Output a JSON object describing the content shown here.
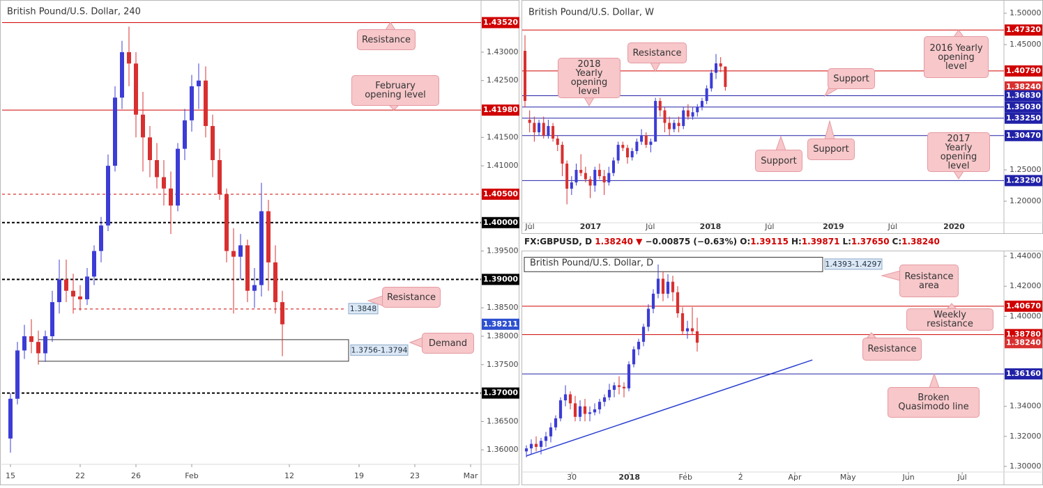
{
  "chart_data": [
    {
      "type": "candlestick",
      "title": "British Pound/U.S. Dollar, 240",
      "up_color": "#3c3cd6",
      "down_color": "#d83030",
      "open": [
        1.362,
        1.369,
        1.3775,
        1.38,
        1.379,
        1.377,
        1.38,
        1.386,
        1.39,
        1.388,
        1.387,
        1.3865,
        1.3905,
        1.395,
        1.3995,
        1.41,
        1.422,
        1.43,
        1.428,
        1.419,
        1.415,
        1.411,
        1.408,
        1.406,
        1.403,
        1.413,
        1.418,
        1.424,
        1.425,
        1.417,
        1.411,
        1.405,
        1.395,
        1.394,
        1.396,
        1.388,
        1.389,
        1.402,
        1.393,
        1.386
      ],
      "high": [
        1.37,
        1.379,
        1.382,
        1.383,
        1.381,
        1.381,
        1.388,
        1.3935,
        1.3935,
        1.391,
        1.389,
        1.392,
        1.396,
        1.401,
        1.412,
        1.424,
        1.432,
        1.4345,
        1.43,
        1.423,
        1.417,
        1.414,
        1.411,
        1.409,
        1.414,
        1.42,
        1.426,
        1.428,
        1.4275,
        1.419,
        1.413,
        1.406,
        1.399,
        1.398,
        1.397,
        1.392,
        1.407,
        1.404,
        1.396,
        1.388
      ],
      "low": [
        1.3595,
        1.368,
        1.376,
        1.377,
        1.375,
        1.3755,
        1.379,
        1.384,
        1.386,
        1.384,
        1.3845,
        1.3855,
        1.389,
        1.393,
        1.3985,
        1.409,
        1.42,
        1.424,
        1.415,
        1.409,
        1.408,
        1.406,
        1.403,
        1.398,
        1.402,
        1.411,
        1.416,
        1.42,
        1.415,
        1.408,
        1.404,
        1.393,
        1.384,
        1.39,
        1.386,
        1.385,
        1.387,
        1.388,
        1.384,
        1.3765
      ],
      "close": [
        1.369,
        1.3775,
        1.38,
        1.379,
        1.377,
        1.38,
        1.386,
        1.39,
        1.388,
        1.387,
        1.3865,
        1.3905,
        1.395,
        1.3995,
        1.41,
        1.422,
        1.43,
        1.428,
        1.419,
        1.415,
        1.411,
        1.408,
        1.406,
        1.403,
        1.413,
        1.418,
        1.424,
        1.425,
        1.417,
        1.411,
        1.405,
        1.395,
        1.394,
        1.396,
        1.388,
        1.389,
        1.402,
        1.393,
        1.386,
        1.3821
      ],
      "xlim": [
        -1.2,
        67.5
      ],
      "xticks": [
        {
          "value": 0,
          "label": "15"
        },
        {
          "value": 10,
          "label": "22"
        },
        {
          "value": 18,
          "label": "26"
        },
        {
          "value": 26,
          "label": "Feb"
        },
        {
          "value": 40,
          "label": "12"
        },
        {
          "value": 50,
          "label": "19"
        },
        {
          "value": 58,
          "label": "23"
        },
        {
          "value": 66,
          "label": "Mar"
        }
      ],
      "ylim": [
        1.3577,
        1.4382
      ],
      "yticks": [
        {
          "value": 1.43,
          "label": "1.43000"
        },
        {
          "value": 1.425,
          "label": "1.42500"
        },
        {
          "value": 1.415,
          "label": "1.41500"
        },
        {
          "value": 1.41,
          "label": "1.41000"
        },
        {
          "value": 1.395,
          "label": "1.39500"
        },
        {
          "value": 1.385,
          "label": "1.38500"
        },
        {
          "value": 1.38,
          "label": "1.38000"
        },
        {
          "value": 1.375,
          "label": "1.37500"
        },
        {
          "value": 1.365,
          "label": "1.36500"
        },
        {
          "value": 1.36,
          "label": "1.36000"
        }
      ],
      "levels": [
        {
          "value": 1.4352,
          "label": "1.43520",
          "color": "#d00000",
          "style": "solid"
        },
        {
          "value": 1.4198,
          "label": "1.41980",
          "color": "#d00000",
          "style": "solid"
        },
        {
          "value": 1.405,
          "label": "1.40500",
          "color": "#d00000",
          "style": "dashed"
        },
        {
          "value": 1.4,
          "label": "1.40000",
          "color": "#000000",
          "style": "dashed"
        },
        {
          "value": 1.39,
          "label": "1.39000",
          "color": "#000000",
          "style": "dashed"
        },
        {
          "value": 1.3848,
          "label": "1.3848",
          "color": "#d00000",
          "style": "dashed",
          "inline": true
        },
        {
          "value": 1.38211,
          "label": "1.38211",
          "color": "#2d50d0",
          "style": "none"
        },
        {
          "value": 1.37,
          "label": "1.37000",
          "color": "#000000",
          "style": "dashed"
        }
      ],
      "zones": [
        {
          "low": 1.3756,
          "high": 1.3794,
          "label": "1.3756-1.3794"
        }
      ],
      "annotations": [
        "Resistance",
        "February opening level",
        "Resistance",
        "Demand"
      ]
    },
    {
      "type": "candlestick",
      "title": "British Pound/U.S. Dollar, W",
      "up_color": "#3c3cd6",
      "down_color": "#d83030",
      "open": [
        1.44,
        1.33,
        1.325,
        1.31,
        1.325,
        1.305,
        1.32,
        1.3,
        1.29,
        1.26,
        1.22,
        1.23,
        1.25,
        1.245,
        1.235,
        1.225,
        1.25,
        1.24,
        1.23,
        1.245,
        1.265,
        1.29,
        1.285,
        1.27,
        1.28,
        1.295,
        1.305,
        1.29,
        1.295,
        1.36,
        1.345,
        1.325,
        1.315,
        1.325,
        1.32,
        1.345,
        1.335,
        1.342,
        1.35,
        1.36,
        1.38,
        1.405,
        1.42,
        1.415
      ],
      "high": [
        1.465,
        1.345,
        1.335,
        1.33,
        1.335,
        1.33,
        1.325,
        1.305,
        1.295,
        1.265,
        1.24,
        1.26,
        1.275,
        1.255,
        1.24,
        1.255,
        1.26,
        1.25,
        1.255,
        1.27,
        1.295,
        1.295,
        1.29,
        1.285,
        1.3,
        1.315,
        1.31,
        1.3,
        1.365,
        1.365,
        1.35,
        1.335,
        1.33,
        1.335,
        1.35,
        1.355,
        1.35,
        1.355,
        1.365,
        1.385,
        1.41,
        1.435,
        1.43,
        1.415
      ],
      "low": [
        1.35,
        1.31,
        1.295,
        1.305,
        1.3,
        1.3,
        1.295,
        1.28,
        1.24,
        1.195,
        1.21,
        1.225,
        1.24,
        1.23,
        1.205,
        1.215,
        1.235,
        1.21,
        1.225,
        1.24,
        1.26,
        1.28,
        1.26,
        1.265,
        1.275,
        1.29,
        1.285,
        1.278,
        1.295,
        1.335,
        1.31,
        1.305,
        1.31,
        1.31,
        1.315,
        1.33,
        1.33,
        1.335,
        1.345,
        1.355,
        1.375,
        1.395,
        1.406,
        1.3765
      ],
      "close": [
        1.36,
        1.325,
        1.31,
        1.325,
        1.305,
        1.32,
        1.3,
        1.29,
        1.26,
        1.22,
        1.23,
        1.25,
        1.245,
        1.235,
        1.225,
        1.25,
        1.24,
        1.23,
        1.245,
        1.265,
        1.29,
        1.285,
        1.27,
        1.28,
        1.295,
        1.305,
        1.29,
        1.295,
        1.36,
        1.345,
        1.325,
        1.315,
        1.325,
        1.32,
        1.345,
        1.335,
        1.342,
        1.35,
        1.36,
        1.38,
        1.405,
        1.42,
        1.415,
        1.3824
      ],
      "xlim": [
        -0.6,
        102.8
      ],
      "xticks": [
        {
          "value": 1.05,
          "label": "Jul"
        },
        {
          "value": 14.07,
          "label": "2017"
        },
        {
          "value": 26.9,
          "label": "Jul"
        },
        {
          "value": 39.8,
          "label": "2018"
        },
        {
          "value": 52.5,
          "label": "Jul"
        },
        {
          "value": 66.2,
          "label": "2019"
        },
        {
          "value": 78.9,
          "label": "Jul"
        },
        {
          "value": 92.1,
          "label": "2020"
        }
      ],
      "ylim": [
        1.1678,
        1.5156
      ],
      "yticks": [
        {
          "value": 1.5,
          "label": "1.50000"
        },
        {
          "value": 1.45,
          "label": "1.45000"
        },
        {
          "value": 1.25,
          "label": "1.25000"
        },
        {
          "value": 1.2,
          "label": "1.20000"
        }
      ],
      "levels": [
        {
          "value": 1.4732,
          "label": "1.47320",
          "color": "#d00000",
          "style": "solid"
        },
        {
          "value": 1.4079,
          "label": "1.40790",
          "color": "#d00000",
          "style": "solid"
        },
        {
          "value": 1.3824,
          "label": "1.38240",
          "color": "#d83030",
          "style": "none"
        },
        {
          "value": 1.3683,
          "label": "1.36830",
          "color": "#2121a8",
          "style": "solid"
        },
        {
          "value": 1.3503,
          "label": "1.35030",
          "color": "#2121a8",
          "style": "solid"
        },
        {
          "value": 1.3325,
          "label": "1.33250",
          "color": "#2121a8",
          "style": "solid"
        },
        {
          "value": 1.3047,
          "label": "1.30470",
          "color": "#2121a8",
          "style": "solid"
        },
        {
          "value": 1.2329,
          "label": "1.23290",
          "color": "#2121a8",
          "style": "solid"
        }
      ],
      "annotations": [
        "Resistance",
        "2018 Yearly opening level",
        "Support",
        "Support",
        "Support",
        "2016 Yearly opening level",
        "2017 Yearly opening level"
      ]
    },
    {
      "type": "candlestick",
      "title": "British Pound/U.S. Dollar, D",
      "header": {
        "symbol": "FX:GBPUSD, D",
        "last": "1.38240",
        "arrow": "▼",
        "change": "−0.00875 (−0.63%)",
        "ohlc": [
          {
            "label": "O:",
            "value": "1.39115"
          },
          {
            "label": "H:",
            "value": "1.39871"
          },
          {
            "label": "L:",
            "value": "1.37650"
          },
          {
            "label": "C:",
            "value": "1.38240"
          }
        ]
      },
      "up_color": "#3c3cd6",
      "down_color": "#d83030",
      "open": [
        1.31,
        1.312,
        1.315,
        1.313,
        1.317,
        1.32,
        1.326,
        1.332,
        1.344,
        1.348,
        1.342,
        1.333,
        1.34,
        1.335,
        1.336,
        1.338,
        1.343,
        1.346,
        1.351,
        1.354,
        1.353,
        1.352,
        1.368,
        1.378,
        1.383,
        1.393,
        1.405,
        1.415,
        1.425,
        1.415,
        1.423,
        1.416,
        1.402,
        1.39,
        1.392,
        1.39
      ],
      "high": [
        1.314,
        1.318,
        1.32,
        1.319,
        1.323,
        1.329,
        1.334,
        1.346,
        1.354,
        1.35,
        1.347,
        1.344,
        1.345,
        1.34,
        1.342,
        1.345,
        1.348,
        1.355,
        1.356,
        1.36,
        1.356,
        1.37,
        1.38,
        1.385,
        1.395,
        1.408,
        1.418,
        1.4345,
        1.43,
        1.428,
        1.427,
        1.42,
        1.406,
        1.397,
        1.406,
        1.399
      ],
      "low": [
        1.306,
        1.308,
        1.31,
        1.308,
        1.313,
        1.316,
        1.324,
        1.33,
        1.34,
        1.338,
        1.33,
        1.33,
        1.33,
        1.33,
        1.334,
        1.335,
        1.34,
        1.344,
        1.346,
        1.348,
        1.346,
        1.35,
        1.366,
        1.374,
        1.38,
        1.39,
        1.402,
        1.412,
        1.41,
        1.412,
        1.41,
        1.399,
        1.388,
        1.385,
        1.388,
        1.3765
      ],
      "close": [
        1.312,
        1.315,
        1.313,
        1.317,
        1.32,
        1.326,
        1.332,
        1.344,
        1.348,
        1.342,
        1.333,
        1.34,
        1.335,
        1.336,
        1.338,
        1.343,
        1.346,
        1.351,
        1.354,
        1.353,
        1.352,
        1.368,
        1.378,
        1.383,
        1.393,
        1.405,
        1.415,
        1.425,
        1.415,
        1.423,
        1.416,
        1.402,
        1.39,
        1.392,
        1.39,
        1.3824
      ],
      "xlim": [
        -0.86,
        97.86
      ],
      "xticks": [
        {
          "value": 9.3,
          "label": "30"
        },
        {
          "value": 21.1,
          "label": "2018"
        },
        {
          "value": 32.6,
          "label": "Feb"
        },
        {
          "value": 43.9,
          "label": "2"
        },
        {
          "value": 55,
          "label": "Apr"
        },
        {
          "value": 65.9,
          "label": "May"
        },
        {
          "value": 78.3,
          "label": "Jun"
        },
        {
          "value": 89.3,
          "label": "Jul"
        }
      ],
      "ylim": [
        1.2972,
        1.4428
      ],
      "yticks": [
        {
          "value": 1.44,
          "label": "1.44000"
        },
        {
          "value": 1.42,
          "label": "1.42000"
        },
        {
          "value": 1.4,
          "label": "1.40000"
        },
        {
          "value": 1.34,
          "label": "1.34000"
        },
        {
          "value": 1.32,
          "label": "1.32000"
        },
        {
          "value": 1.3,
          "label": "1.30000"
        }
      ],
      "levels": [
        {
          "value": 1.4067,
          "label": "1.40670",
          "color": "#d00000",
          "style": "solid"
        },
        {
          "value": 1.3878,
          "label": "1.38780",
          "color": "#d00000",
          "style": "solid"
        },
        {
          "value": 1.3824,
          "label": "1.38240",
          "color": "#d83030",
          "style": "none"
        },
        {
          "value": 1.3616,
          "label": "1.36160",
          "color": "#2121a8",
          "style": "solid"
        }
      ],
      "zones": [
        {
          "low": 1.4297,
          "high": 1.4393,
          "label": "1.4393-1.4297"
        }
      ],
      "trendline": {
        "x": [
          0,
          58.6
        ],
        "y": [
          1.307,
          1.3709
        ],
        "color": "#2a3fd0"
      },
      "annotations": [
        "Resistance area",
        "Weekly resistance",
        "Resistance",
        "Broken Quasimodo line"
      ]
    }
  ]
}
